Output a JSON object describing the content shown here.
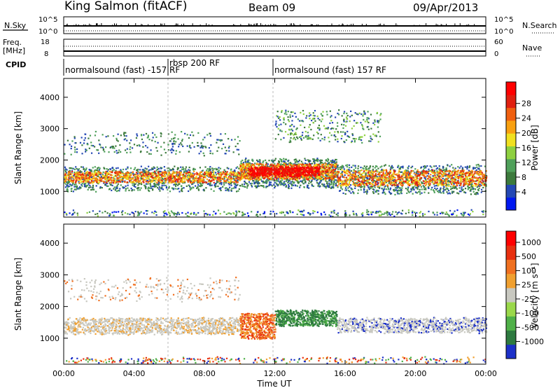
{
  "header": {
    "station": "King Salmon (fitACF)",
    "beam": "Beam 09",
    "date": "09/Apr/2013"
  },
  "noise_panel": {
    "left_label": "N.Sky",
    "left_ticks": [
      "10^5",
      "10^0"
    ],
    "right_label": "N.Search",
    "right_ticks": [
      "10^5",
      "10^0"
    ]
  },
  "freq_panel": {
    "left_label_line1": "Freq.",
    "left_label_line2": "[MHz]",
    "left_ticks": [
      "18",
      "8"
    ],
    "right_label": "Nave",
    "right_ticks": [
      "60",
      "0"
    ]
  },
  "cpid": {
    "label": "CPID",
    "segments": [
      {
        "text": "normalsound (fast) -157 RF",
        "start_hour": 0
      },
      {
        "text": "rbsp 200 RF",
        "start_hour": 6
      },
      {
        "text": "normalsound (fast) 157 RF",
        "start_hour": 12
      }
    ]
  },
  "chart_data": [
    {
      "type": "heatmap",
      "title": "Power",
      "ylabel": "Slant Range [km]",
      "xlabel": "Time UT",
      "xlim_hours": [
        0,
        24
      ],
      "ylim": [
        180,
        4600
      ],
      "x_ticks": [
        "00:00",
        "04:00",
        "08:00",
        "12:00",
        "16:00",
        "20:00",
        "00:00"
      ],
      "y_ticks": [
        1000,
        2000,
        3000,
        4000
      ],
      "colorbar": {
        "label": "Power [dB]",
        "ticks": [
          4,
          8,
          12,
          16,
          20,
          24,
          28
        ],
        "colors": [
          "#0018f0",
          "#2448b4",
          "#3c7a3c",
          "#4fa05a",
          "#8ed040",
          "#f0e020",
          "#f8a010",
          "#f06010",
          "#e02010",
          "#ff0000"
        ]
      },
      "features": [
        {
          "name": "main-band",
          "hours": [
            0,
            10
          ],
          "range_km": [
            1300,
            1650
          ]
        },
        {
          "name": "afternoon-band",
          "hours": [
            15.5,
            24
          ],
          "range_km": [
            1200,
            1700
          ]
        },
        {
          "name": "midday-enhancement",
          "hours": [
            10,
            15.5
          ],
          "range_km": [
            1400,
            1900
          ]
        }
      ]
    },
    {
      "type": "heatmap",
      "title": "Velocity",
      "ylabel": "Slant Range [km]",
      "xlabel": "Time UT",
      "xlim_hours": [
        0,
        24
      ],
      "ylim": [
        180,
        4600
      ],
      "x_ticks": [
        "00:00",
        "04:00",
        "08:00",
        "12:00",
        "16:00",
        "20:00",
        "00:00"
      ],
      "y_ticks": [
        1000,
        2000,
        3000,
        4000
      ],
      "colorbar": {
        "label": "Velocity [m s⁻¹]",
        "ticks": [
          1000,
          500,
          100,
          25,
          -25,
          -100,
          -500,
          -1000
        ],
        "colors": [
          "#1c30c8",
          "#2e7a40",
          "#4fb048",
          "#9ad84a",
          "#c8c8c0",
          "#f0a030",
          "#f07020",
          "#e83010",
          "#ff0000"
        ]
      }
    }
  ],
  "colors": {
    "ground_scatter": "#c8c8c0",
    "frame": "#000000"
  }
}
